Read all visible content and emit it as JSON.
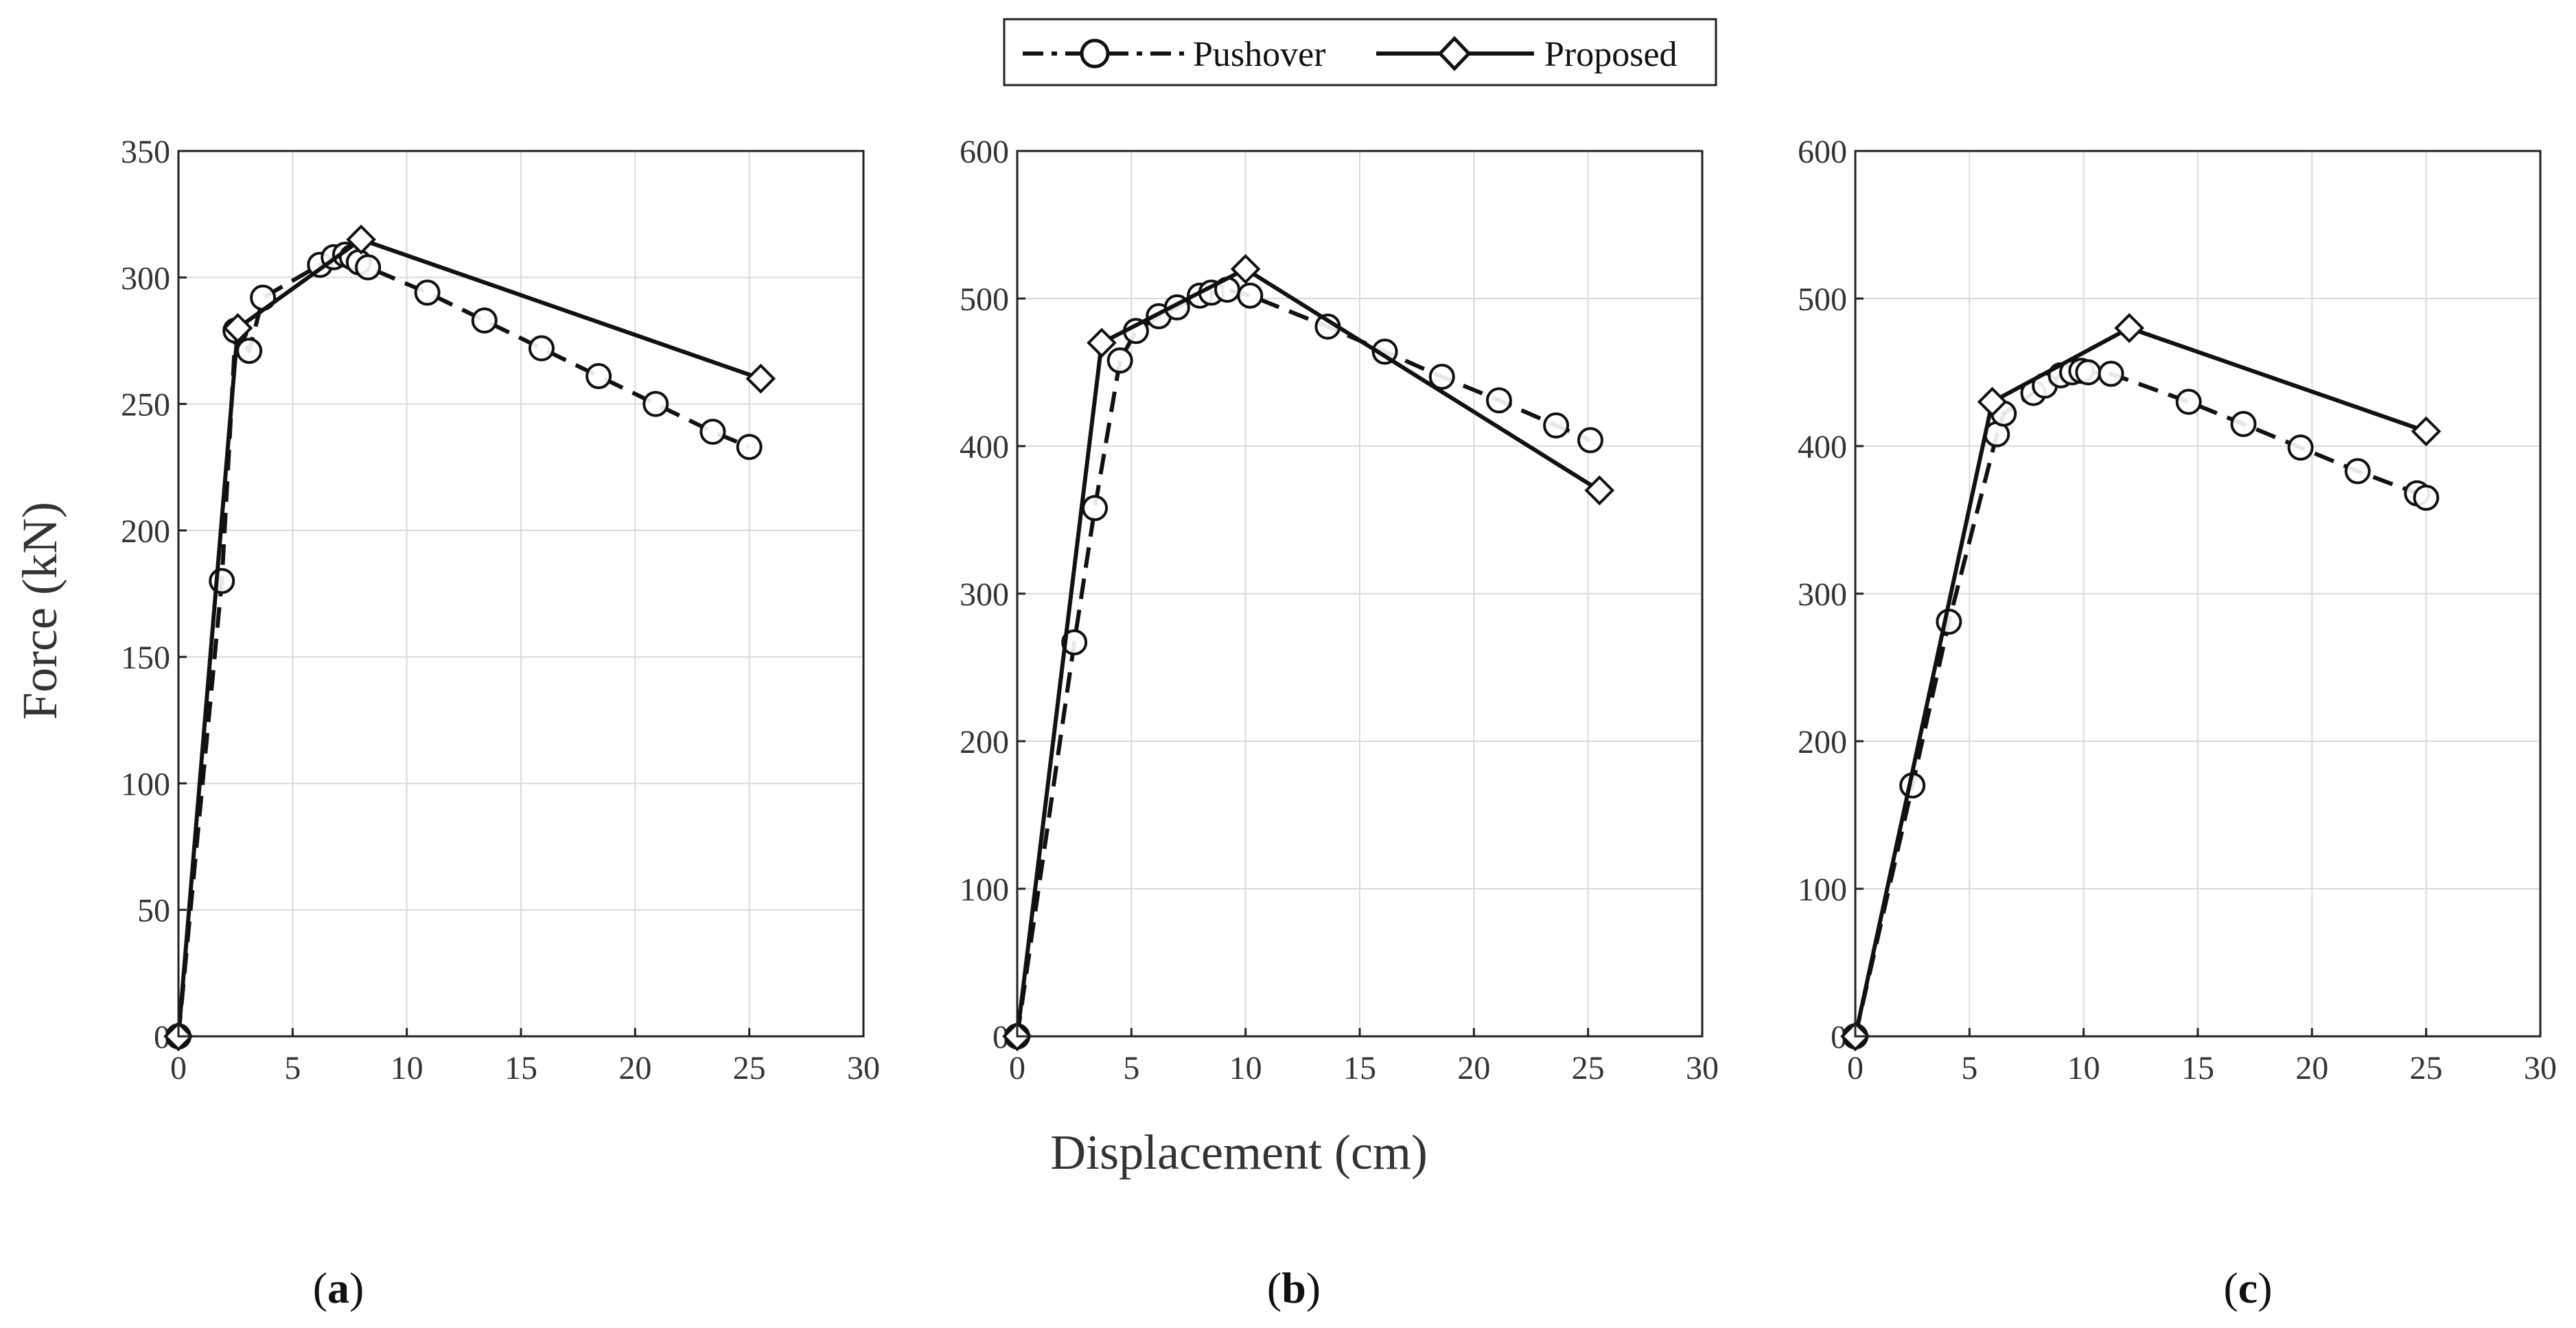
{
  "figure": {
    "xlabel": "Displacement (cm)",
    "ylabel": "Force (kN)"
  },
  "legend": {
    "items": [
      {
        "name": "Pushover",
        "style": "dashed",
        "marker": "circle"
      },
      {
        "name": "Proposed",
        "style": "solid",
        "marker": "diamond"
      }
    ]
  },
  "colors": {
    "line": "#111111",
    "grid": "#d9d9d9",
    "axis": "#222222",
    "text": "#333333"
  },
  "chart_data": [
    {
      "type": "line",
      "panel_label": "a",
      "xlim": [
        0,
        30
      ],
      "ylim": [
        0,
        350
      ],
      "xticks": [
        0,
        5,
        10,
        15,
        20,
        25,
        30
      ],
      "yticks": [
        0,
        50,
        100,
        150,
        200,
        250,
        300,
        350
      ],
      "grid": true,
      "series": [
        {
          "name": "Pushover",
          "x": [
            0,
            1.9,
            2.5,
            3.1,
            3.7,
            6.2,
            6.8,
            7.3,
            7.6,
            7.9,
            8.3,
            10.9,
            13.4,
            15.9,
            18.4,
            20.9,
            23.4,
            25
          ],
          "y": [
            0,
            180,
            279,
            271,
            292,
            305,
            308,
            309,
            308,
            306,
            304,
            294,
            283,
            272,
            261,
            250,
            239,
            233
          ]
        },
        {
          "name": "Proposed",
          "x": [
            0,
            2.6,
            8,
            25.5
          ],
          "y": [
            0,
            280,
            315,
            260
          ]
        }
      ]
    },
    {
      "type": "line",
      "panel_label": "b",
      "xlim": [
        0,
        30
      ],
      "ylim": [
        0,
        600
      ],
      "xticks": [
        0,
        5,
        10,
        15,
        20,
        25,
        30
      ],
      "yticks": [
        0,
        100,
        200,
        300,
        400,
        500,
        600
      ],
      "grid": true,
      "series": [
        {
          "name": "Pushover",
          "x": [
            0,
            2.5,
            3.4,
            4.5,
            5.2,
            6.2,
            7,
            8,
            8.5,
            9.2,
            10.2,
            13.6,
            16.1,
            18.6,
            21.1,
            23.6,
            25.1
          ],
          "y": [
            0,
            267,
            358,
            458,
            478,
            488,
            494,
            502,
            504,
            506,
            502,
            481,
            464,
            447,
            431,
            414,
            404
          ]
        },
        {
          "name": "Proposed",
          "x": [
            0,
            3.7,
            10,
            25.5
          ],
          "y": [
            0,
            470,
            520,
            370
          ]
        }
      ]
    },
    {
      "type": "line",
      "panel_label": "c",
      "xlim": [
        0,
        30
      ],
      "ylim": [
        0,
        600
      ],
      "xticks": [
        0,
        5,
        10,
        15,
        20,
        25,
        30
      ],
      "yticks": [
        0,
        100,
        200,
        300,
        400,
        500,
        600
      ],
      "grid": true,
      "series": [
        {
          "name": "Pushover",
          "x": [
            0,
            2.5,
            4.1,
            6.2,
            6.5,
            7.8,
            8.3,
            9,
            9.5,
            9.9,
            10.2,
            11.2,
            14.6,
            17,
            19.5,
            22,
            24.6,
            25
          ],
          "y": [
            0,
            170,
            281,
            408,
            422,
            436,
            441,
            448,
            450,
            451,
            450,
            449,
            430,
            415,
            399,
            383,
            368,
            365
          ]
        },
        {
          "name": "Proposed",
          "x": [
            0,
            6,
            12,
            25
          ],
          "y": [
            0,
            430,
            480,
            410
          ]
        }
      ]
    }
  ]
}
